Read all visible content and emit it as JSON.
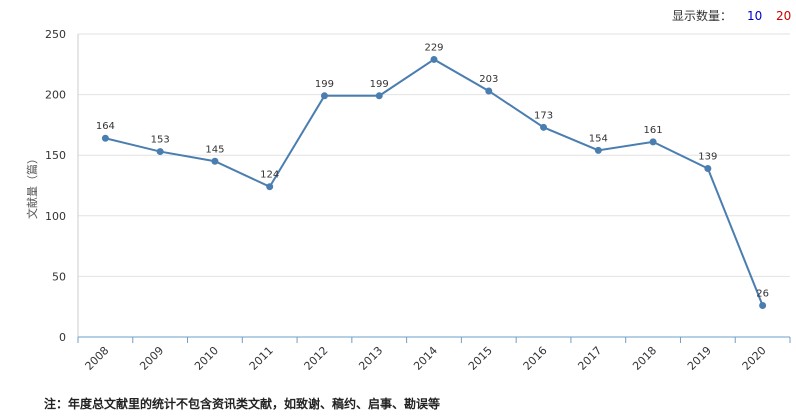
{
  "controls": {
    "label": "显示数量：",
    "options": [
      "10",
      "20"
    ]
  },
  "chart_data": {
    "type": "line",
    "y_label": "文献量（篇）",
    "categories": [
      "2008",
      "2009",
      "2010",
      "2011",
      "2012",
      "2013",
      "2014",
      "2015",
      "2016",
      "2017",
      "2018",
      "2019",
      "2020"
    ],
    "values": [
      164,
      153,
      145,
      124,
      199,
      199,
      229,
      203,
      173,
      154,
      161,
      139,
      26
    ],
    "color": "#4a7eb0",
    "ylim": [
      0,
      250
    ],
    "yticks": [
      0,
      50,
      100,
      150,
      200,
      250
    ],
    "grid": true
  },
  "note": "注：年度总文献里的统计不包含资讯类文献，如致谢、稿约、启事、勘误等"
}
